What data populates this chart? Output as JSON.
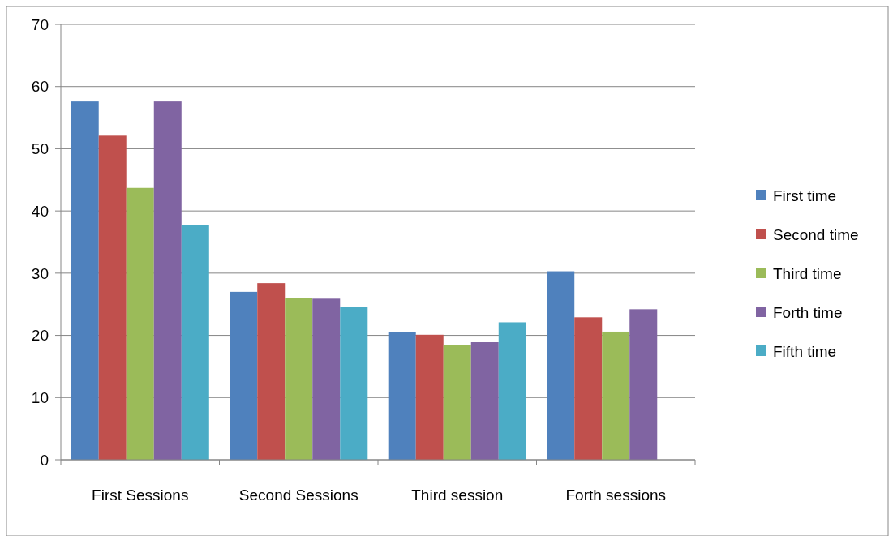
{
  "chart_data": {
    "type": "bar",
    "categories": [
      "First Sessions",
      "Second Sessions",
      "Third session",
      "Forth sessions"
    ],
    "series": [
      {
        "name": "First time",
        "color": "#4f81bd",
        "values": [
          57.6,
          27.0,
          20.5,
          30.3
        ]
      },
      {
        "name": "Second time",
        "color": "#c0504d",
        "values": [
          52.1,
          28.4,
          20.1,
          22.9
        ]
      },
      {
        "name": "Third time",
        "color": "#9bbb59",
        "values": [
          43.7,
          26.0,
          18.5,
          20.6
        ]
      },
      {
        "name": "Forth time",
        "color": "#8064a2",
        "values": [
          57.6,
          25.9,
          18.9,
          24.2
        ]
      },
      {
        "name": "Fifth time",
        "color": "#4bacc6",
        "values": [
          37.7,
          24.6,
          22.1,
          null
        ]
      }
    ],
    "ylim": [
      0,
      70
    ],
    "yticks": [
      0,
      10,
      20,
      30,
      40,
      50,
      60,
      70
    ],
    "grid": "y",
    "legend": "right"
  }
}
